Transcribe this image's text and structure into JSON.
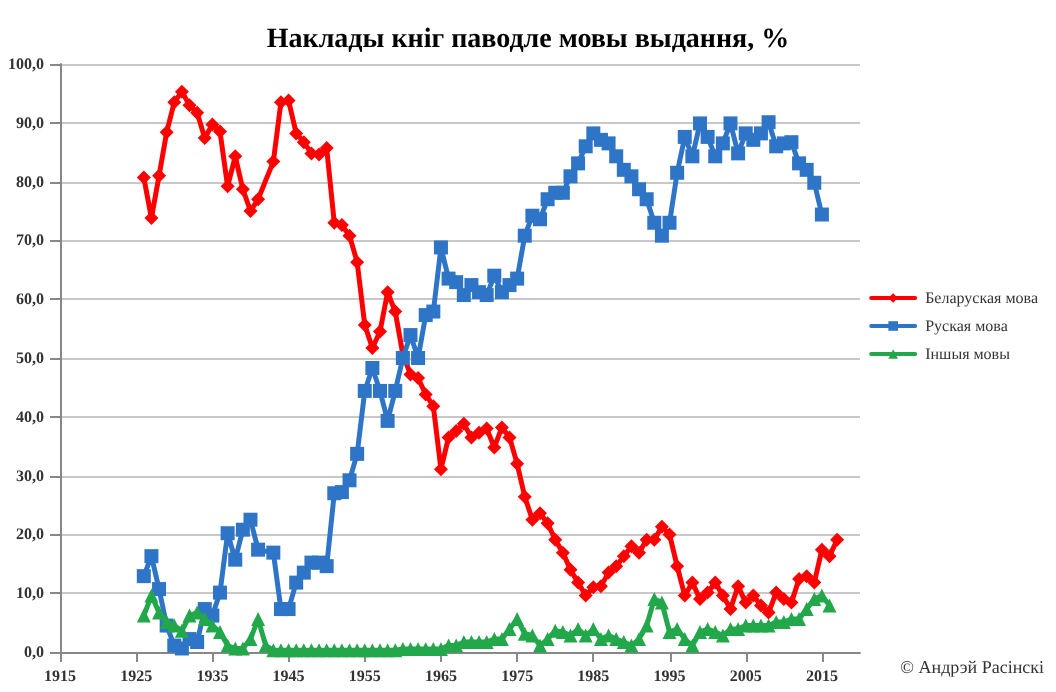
{
  "chart_data": {
    "type": "line",
    "title": "Наклады кніг паводле мовы выдання, %",
    "xlim": [
      1915,
      2020
    ],
    "xticks": [
      1915,
      1925,
      1935,
      1945,
      1955,
      1965,
      1975,
      1985,
      1995,
      2005,
      2015
    ],
    "ylim": [
      0,
      100
    ],
    "yticks": [
      {
        "value": 0,
        "label": "0,0"
      },
      {
        "value": 10,
        "label": "10,0"
      },
      {
        "value": 20,
        "label": "20,0"
      },
      {
        "value": 30,
        "label": "30,0"
      },
      {
        "value": 40,
        "label": "40,0"
      },
      {
        "value": 50,
        "label": "50,0"
      },
      {
        "value": 60,
        "label": "60,0"
      },
      {
        "value": 70,
        "label": "70,0"
      },
      {
        "value": 80,
        "label": "80,0"
      },
      {
        "value": 90,
        "label": "90,0"
      },
      {
        "value": 100,
        "label": "100,0"
      }
    ],
    "grid": "y",
    "legend": "right",
    "annotations": [
      "© Андрэй Расінскі"
    ],
    "series": [
      {
        "name": "Беларуская мова",
        "color": "#ff0000",
        "marker": "diamond",
        "x": [
          1926,
          1927,
          1928,
          1929,
          1930,
          1931,
          1932,
          1933,
          1934,
          1935,
          1936,
          1937,
          1938,
          1939,
          1940,
          1941,
          1943,
          1944,
          1945,
          1946,
          1947,
          1948,
          1949,
          1950,
          1951,
          1952,
          1953,
          1954,
          1955,
          1956,
          1957,
          1958,
          1959,
          1960,
          1961,
          1962,
          1963,
          1964,
          1965,
          1966,
          1967,
          1968,
          1969,
          1970,
          1971,
          1972,
          1973,
          1974,
          1975,
          1976,
          1977,
          1978,
          1979,
          1980,
          1981,
          1982,
          1983,
          1984,
          1985,
          1986,
          1987,
          1988,
          1989,
          1990,
          1991,
          1992,
          1993,
          1994,
          1995,
          1996,
          1997,
          1998,
          1999,
          2000,
          2001,
          2002,
          2003,
          2004,
          2005,
          2006,
          2007,
          2008,
          2009,
          2010,
          2011,
          2012,
          2013,
          2014,
          2015,
          2016,
          2017
        ],
        "values": [
          80.7,
          73.8,
          81,
          88.4,
          93.5,
          95.3,
          93,
          91.7,
          87.4,
          89.7,
          88.5,
          79.2,
          84.3,
          78.7,
          75,
          77,
          83.4,
          93.5,
          93.8,
          88.2,
          86.7,
          84.8,
          84.6,
          85.7,
          73,
          72.6,
          70.8,
          66.3,
          55.6,
          51.7,
          54.5,
          61.2,
          57.9,
          50.6,
          47.2,
          46.6,
          43.8,
          41.8,
          31.1,
          36.5,
          37.6,
          38.8,
          36.5,
          37.3,
          38,
          34.8,
          38.2,
          36.5,
          32,
          26.4,
          22.5,
          23.6,
          21.9,
          19.1,
          16.9,
          14,
          11.8,
          9.6,
          11,
          11.2,
          13.5,
          14.6,
          16.3,
          18,
          16.9,
          19.1,
          19.1,
          21.3,
          20,
          14.6,
          9.6,
          11.8,
          9,
          10.1,
          11.8,
          9.6,
          7.3,
          11.2,
          8.4,
          9.6,
          7.9,
          6.7,
          10.1,
          9,
          8.4,
          12.4,
          12.9,
          11.8,
          17.4,
          16.3,
          19.1
        ]
      },
      {
        "name": "Руская мова",
        "color": "#2e75c8",
        "marker": "square",
        "x": [
          1926,
          1927,
          1928,
          1929,
          1930,
          1931,
          1932,
          1933,
          1934,
          1935,
          1936,
          1937,
          1938,
          1939,
          1940,
          1941,
          1943,
          1944,
          1945,
          1946,
          1947,
          1948,
          1949,
          1950,
          1951,
          1952,
          1953,
          1954,
          1955,
          1956,
          1957,
          1958,
          1959,
          1960,
          1961,
          1962,
          1963,
          1964,
          1965,
          1966,
          1967,
          1968,
          1969,
          1970,
          1971,
          1972,
          1973,
          1974,
          1975,
          1976,
          1977,
          1978,
          1979,
          1980,
          1981,
          1982,
          1983,
          1984,
          1985,
          1986,
          1987,
          1988,
          1989,
          1990,
          1991,
          1992,
          1993,
          1994,
          1995,
          1996,
          1997,
          1998,
          1999,
          2000,
          2001,
          2002,
          2003,
          2004,
          2005,
          2006,
          2007,
          2008,
          2009,
          2010,
          2011,
          2012,
          2013,
          2014,
          2015
        ],
        "values": [
          12.9,
          16.3,
          10.7,
          4.5,
          1.1,
          0.6,
          2.2,
          1.7,
          7.3,
          6.2,
          10.1,
          20.2,
          15.7,
          20.8,
          22.5,
          17.4,
          16.9,
          7.3,
          7.3,
          11.8,
          13.5,
          15.2,
          15.2,
          14.6,
          27,
          27.2,
          29.2,
          33.7,
          44.4,
          48.3,
          44.4,
          39.3,
          44.4,
          50,
          53.9,
          50,
          57.3,
          57.9,
          68.8,
          63.5,
          62.9,
          60.7,
          62.4,
          61.2,
          60.7,
          64,
          61.2,
          62.4,
          63.5,
          70.8,
          74.2,
          73.6,
          77,
          78.1,
          78.1,
          80.9,
          83.1,
          86,
          88.2,
          87.1,
          86.5,
          84.3,
          82,
          80.9,
          78.7,
          77,
          73,
          70.8,
          73,
          81.5,
          87.6,
          84.3,
          89.9,
          87.6,
          84.3,
          86.5,
          89.9,
          84.8,
          88.2,
          87.1,
          88.2,
          90.1,
          86,
          86.5,
          86.7,
          83.1,
          82,
          79.8,
          74.4
        ]
      },
      {
        "name": "Іншыя мовы",
        "color": "#22a84a",
        "marker": "triangle",
        "x": [
          1926,
          1927,
          1928,
          1929,
          1930,
          1931,
          1932,
          1933,
          1934,
          1935,
          1936,
          1937,
          1938,
          1939,
          1940,
          1941,
          1942,
          1943,
          1944,
          1945,
          1946,
          1947,
          1948,
          1949,
          1950,
          1951,
          1952,
          1953,
          1954,
          1955,
          1956,
          1957,
          1958,
          1959,
          1960,
          1961,
          1962,
          1963,
          1964,
          1965,
          1966,
          1967,
          1968,
          1969,
          1970,
          1971,
          1972,
          1973,
          1974,
          1975,
          1976,
          1977,
          1978,
          1979,
          1980,
          1981,
          1982,
          1983,
          1984,
          1985,
          1986,
          1987,
          1988,
          1989,
          1990,
          1991,
          1992,
          1993,
          1994,
          1995,
          1996,
          1997,
          1998,
          1999,
          2000,
          2001,
          2002,
          2003,
          2004,
          2005,
          2006,
          2007,
          2008,
          2009,
          2010,
          2011,
          2012,
          2013,
          2014,
          2015,
          2016
        ],
        "values": [
          6.2,
          9.6,
          6.7,
          5.1,
          4.5,
          3.6,
          6.2,
          6.7,
          5.6,
          4.5,
          3.4,
          1.1,
          0.6,
          0.6,
          2.2,
          5.6,
          1.1,
          0.3,
          0.3,
          0.3,
          0.3,
          0.3,
          0.3,
          0.3,
          0.3,
          0.3,
          0.3,
          0.3,
          0.3,
          0.3,
          0.3,
          0.3,
          0.3,
          0.3,
          0.5,
          0.5,
          0.5,
          0.5,
          0.5,
          0.5,
          1.1,
          1.1,
          1.7,
          1.7,
          1.7,
          1.7,
          2.2,
          2.2,
          3.9,
          5.6,
          3.1,
          2.8,
          1.1,
          2.2,
          3.6,
          3.4,
          2.8,
          3.9,
          2.8,
          3.9,
          2.2,
          2.8,
          2.2,
          1.7,
          1.1,
          2.2,
          4.5,
          9,
          8.4,
          3.4,
          3.9,
          2.2,
          1.1,
          3.4,
          3.9,
          3.4,
          2.8,
          3.9,
          3.9,
          4.5,
          4.5,
          4.5,
          4.5,
          5.1,
          5.1,
          5.6,
          5.6,
          7.3,
          9,
          9.6,
          7.9
        ]
      }
    ]
  }
}
